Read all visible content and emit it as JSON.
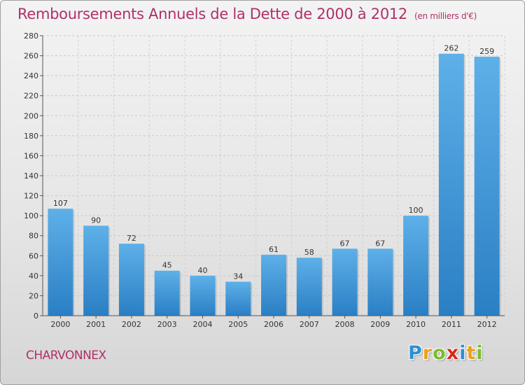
{
  "title": "Remboursements Annuels de la Dette de 2000 à 2012",
  "unit_label": "(en milliers d'€)",
  "commune": "CHARVONNEX",
  "logo": "Proxiti",
  "colors": {
    "bar": "#3a8fd6",
    "bar_light": "#5aaee6",
    "title": "#b0306a"
  },
  "chart_data": {
    "type": "bar",
    "title": "Remboursements Annuels de la Dette de 2000 à 2012",
    "xlabel": "",
    "ylabel": "",
    "categories": [
      "2000",
      "2001",
      "2002",
      "2003",
      "2004",
      "2005",
      "2006",
      "2007",
      "2008",
      "2009",
      "2010",
      "2011",
      "2012"
    ],
    "values": [
      107,
      90,
      72,
      45,
      40,
      34,
      61,
      58,
      67,
      67,
      100,
      262,
      259
    ],
    "ylim": [
      0,
      280
    ],
    "yticks": [
      0,
      20,
      40,
      60,
      80,
      100,
      120,
      140,
      160,
      180,
      200,
      220,
      240,
      260,
      280
    ],
    "grid": true
  }
}
